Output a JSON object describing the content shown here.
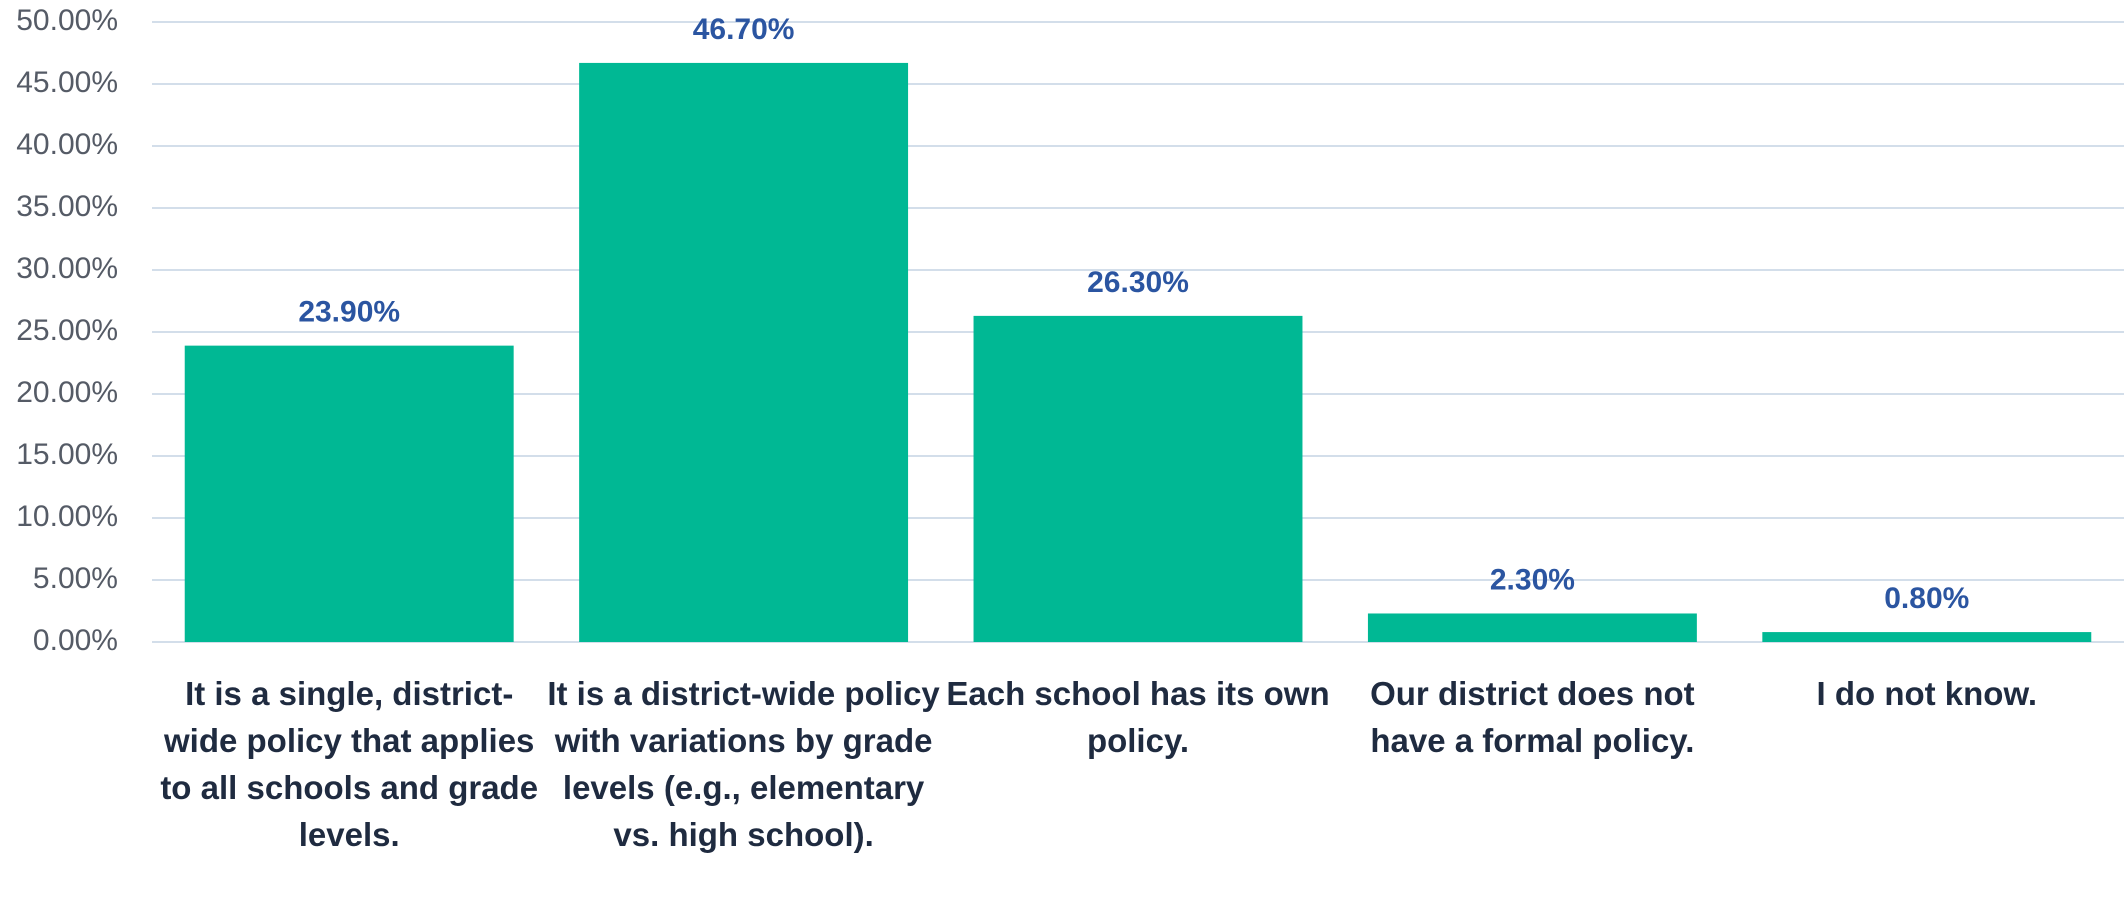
{
  "chart_data": {
    "type": "bar",
    "categories": [
      "It is a single, district-wide policy that applies to all schools and grade levels.",
      "It is a district-wide policy with variations by grade levels (e.g., elementary vs. high school).",
      "Each school has its own policy.",
      "Our district does not have a formal policy.",
      "I do not know."
    ],
    "values": [
      23.9,
      46.7,
      26.3,
      2.3,
      0.8
    ],
    "value_labels": [
      "23.90%",
      "46.70%",
      "26.30%",
      "2.30%",
      "0.80%"
    ],
    "color": "#00b894",
    "ylim": [
      0,
      50
    ],
    "yticks": [
      {
        "value": 0,
        "label": "0.00%"
      },
      {
        "value": 5,
        "label": "5.00%"
      },
      {
        "value": 10,
        "label": "10.00%"
      },
      {
        "value": 15,
        "label": "15.00%"
      },
      {
        "value": 20,
        "label": "20.00%"
      },
      {
        "value": 25,
        "label": "25.00%"
      },
      {
        "value": 30,
        "label": "30.00%"
      },
      {
        "value": 35,
        "label": "35.00%"
      },
      {
        "value": 40,
        "label": "40.00%"
      },
      {
        "value": 45,
        "label": "45.00%"
      },
      {
        "value": 50,
        "label": "50.00%"
      }
    ],
    "grid": true
  }
}
